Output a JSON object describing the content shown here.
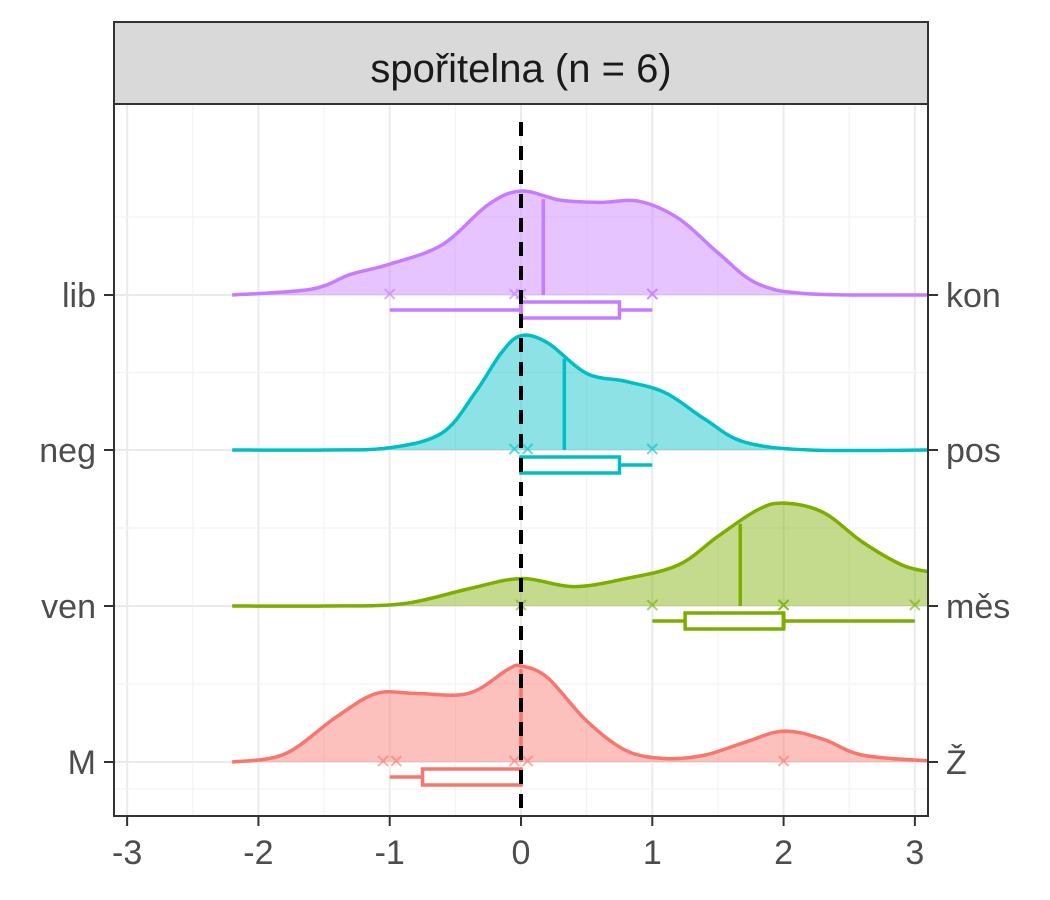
{
  "chart_data": {
    "type": "ridgeline",
    "title": "spořitelna (n = 6)",
    "xlabel": "",
    "ylabel": "",
    "xlim": [
      -3.1,
      3.1
    ],
    "x_ticks": [
      -3,
      -2,
      -1,
      0,
      1,
      2,
      3
    ],
    "grid": true,
    "legend": "none",
    "reference_line": 0,
    "series": [
      {
        "left_label": "lib",
        "right_label": "kon",
        "color": "#C77CFF",
        "points": [
          -1,
          -0.05,
          0,
          1,
          1
        ],
        "mean": 0.17,
        "box": {
          "min": -1,
          "q1": 0,
          "median": 0,
          "q3": 0.75,
          "max": 1
        },
        "density": [
          [
            -2.2,
            0.0
          ],
          [
            -1.6,
            0.05
          ],
          [
            -1.3,
            0.18
          ],
          [
            -1.0,
            0.27
          ],
          [
            -0.6,
            0.44
          ],
          [
            -0.25,
            0.79
          ],
          [
            0.0,
            0.91
          ],
          [
            0.3,
            0.83
          ],
          [
            0.6,
            0.81
          ],
          [
            0.9,
            0.82
          ],
          [
            1.2,
            0.67
          ],
          [
            1.5,
            0.37
          ],
          [
            1.8,
            0.1
          ],
          [
            2.2,
            0.01
          ],
          [
            3.1,
            0.0
          ]
        ]
      },
      {
        "left_label": "neg",
        "right_label": "pos",
        "color": "#00BFC4",
        "points": [
          -0.05,
          0.05,
          1
        ],
        "mean": 0.33,
        "box": {
          "min": 0,
          "q1": 0,
          "median": 0,
          "q3": 0.75,
          "max": 1
        },
        "density": [
          [
            -2.2,
            0.0
          ],
          [
            -1.5,
            0.0
          ],
          [
            -1.0,
            0.02
          ],
          [
            -0.6,
            0.15
          ],
          [
            -0.35,
            0.5
          ],
          [
            -0.15,
            0.85
          ],
          [
            0.0,
            1.0
          ],
          [
            0.2,
            0.94
          ],
          [
            0.5,
            0.67
          ],
          [
            0.8,
            0.6
          ],
          [
            1.1,
            0.5
          ],
          [
            1.4,
            0.27
          ],
          [
            1.7,
            0.07
          ],
          [
            2.2,
            0.0
          ],
          [
            3.1,
            0.0
          ]
        ]
      },
      {
        "left_label": "ven",
        "right_label": "měs",
        "color": "#7CAE00",
        "points": [
          0,
          1,
          2,
          2,
          3
        ],
        "mean": 1.67,
        "box": {
          "min": 1,
          "q1": 1.25,
          "median": 2,
          "q3": 2,
          "max": 3
        },
        "density": [
          [
            -2.2,
            0.0
          ],
          [
            -1.5,
            0.0
          ],
          [
            -0.9,
            0.02
          ],
          [
            -0.4,
            0.15
          ],
          [
            0.0,
            0.24
          ],
          [
            0.4,
            0.17
          ],
          [
            0.8,
            0.24
          ],
          [
            1.2,
            0.36
          ],
          [
            1.5,
            0.61
          ],
          [
            1.8,
            0.84
          ],
          [
            2.0,
            0.9
          ],
          [
            2.3,
            0.82
          ],
          [
            2.6,
            0.56
          ],
          [
            2.9,
            0.36
          ],
          [
            3.1,
            0.3
          ]
        ]
      },
      {
        "left_label": "M",
        "right_label": "Ž",
        "color": "#F8766D",
        "points": [
          -1.05,
          -0.95,
          -0.05,
          0.05,
          2
        ],
        "mean": 0,
        "box": {
          "min": -1,
          "q1": -0.75,
          "median": 0,
          "q3": 0,
          "max": 0
        },
        "density": [
          [
            -2.2,
            0.0
          ],
          [
            -1.8,
            0.07
          ],
          [
            -1.4,
            0.4
          ],
          [
            -1.1,
            0.6
          ],
          [
            -0.8,
            0.6
          ],
          [
            -0.4,
            0.6
          ],
          [
            -0.1,
            0.81
          ],
          [
            0.0,
            0.84
          ],
          [
            0.2,
            0.74
          ],
          [
            0.5,
            0.36
          ],
          [
            0.8,
            0.1
          ],
          [
            1.1,
            0.03
          ],
          [
            1.4,
            0.06
          ],
          [
            1.7,
            0.17
          ],
          [
            2.0,
            0.27
          ],
          [
            2.3,
            0.2
          ],
          [
            2.6,
            0.06
          ],
          [
            3.1,
            0.01
          ]
        ]
      }
    ]
  }
}
